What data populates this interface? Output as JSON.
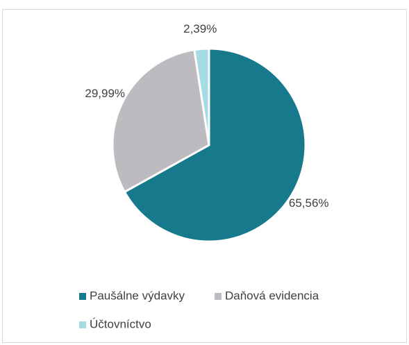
{
  "chart_data": {
    "type": "pie",
    "categories": [
      "Paušálne výdavky",
      "Daňová evidencia",
      "Účtovníctvo"
    ],
    "values": [
      65.56,
      29.99,
      2.39
    ],
    "value_labels": [
      "65,56%",
      "29,99%",
      "2,39%"
    ],
    "colors": [
      "#16798c",
      "#bdbbc0",
      "#a6dbe3"
    ],
    "legend": "bottom"
  }
}
